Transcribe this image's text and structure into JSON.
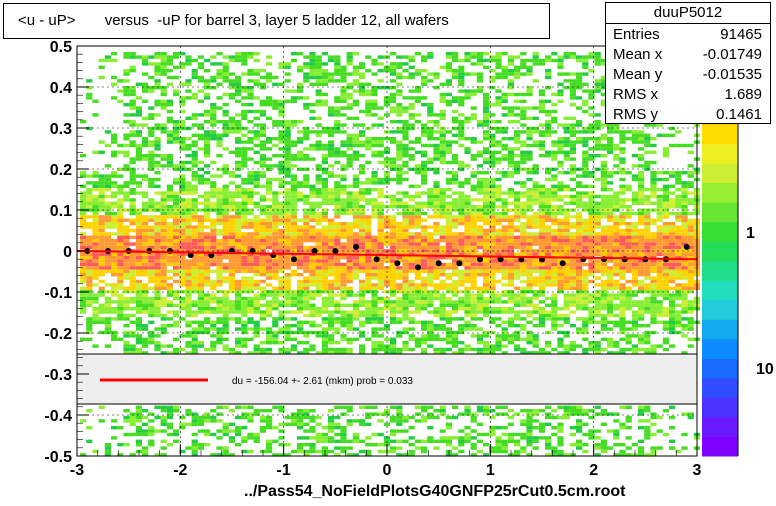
{
  "title": "<u - uP>       versus  -uP for barrel 3, layer 5 ladder 12, all wafers",
  "stats": {
    "name": "duuP5012",
    "rows": [
      {
        "label": "Entries",
        "value": "91465"
      },
      {
        "label": "Mean x",
        "value": "-0.01749"
      },
      {
        "label": "Mean y",
        "value": "-0.01535"
      },
      {
        "label": "RMS x",
        "value": "1.689"
      },
      {
        "label": "RMS y",
        "value": "0.1461"
      }
    ]
  },
  "footer": "../Pass54_NoFieldPlotsG40GNFP25rCut0.5cm.root",
  "legend_text": "du = -156.04 +-  2.61 (mkm) prob = 0.033",
  "colors": {
    "fit_line": "#ff0000",
    "profile_marker": "#000000",
    "legend_fill": "#eeeeee"
  },
  "chart_data": {
    "type": "heatmap",
    "x_ticks": [
      "-3",
      "-2",
      "-1",
      "0",
      "1",
      "2",
      "3"
    ],
    "y_ticks": [
      "-0.5",
      "-0.4",
      "-0.3",
      "-0.2",
      "-0.1",
      "0",
      "0.1",
      "0.2",
      "0.3",
      "0.4",
      "0.5"
    ],
    "xlim": [
      -3,
      3
    ],
    "ylim": [
      -0.5,
      0.5
    ],
    "z_scale": "log",
    "z_tick_labels": [
      "1",
      "10"
    ],
    "grid": true,
    "fit_line": {
      "x": [
        -3,
        3
      ],
      "y": [
        0.0,
        -0.02
      ]
    },
    "profile": {
      "x": [
        -2.9,
        -2.7,
        -2.5,
        -2.3,
        -2.1,
        -1.9,
        -1.7,
        -1.5,
        -1.3,
        -1.1,
        -0.9,
        -0.7,
        -0.5,
        -0.3,
        -0.1,
        0.1,
        0.3,
        0.5,
        0.7,
        0.9,
        1.1,
        1.3,
        1.5,
        1.7,
        1.9,
        2.1,
        2.3,
        2.5,
        2.7,
        2.9
      ],
      "y": [
        0.0,
        0.0,
        0.0,
        0.0,
        0.0,
        -0.01,
        -0.01,
        0.0,
        0.0,
        -0.01,
        -0.02,
        0.0,
        0.0,
        0.01,
        -0.02,
        -0.03,
        -0.04,
        -0.03,
        -0.03,
        -0.02,
        -0.02,
        -0.02,
        -0.02,
        -0.03,
        -0.02,
        -0.02,
        -0.02,
        -0.02,
        -0.02,
        0.01
      ]
    }
  }
}
